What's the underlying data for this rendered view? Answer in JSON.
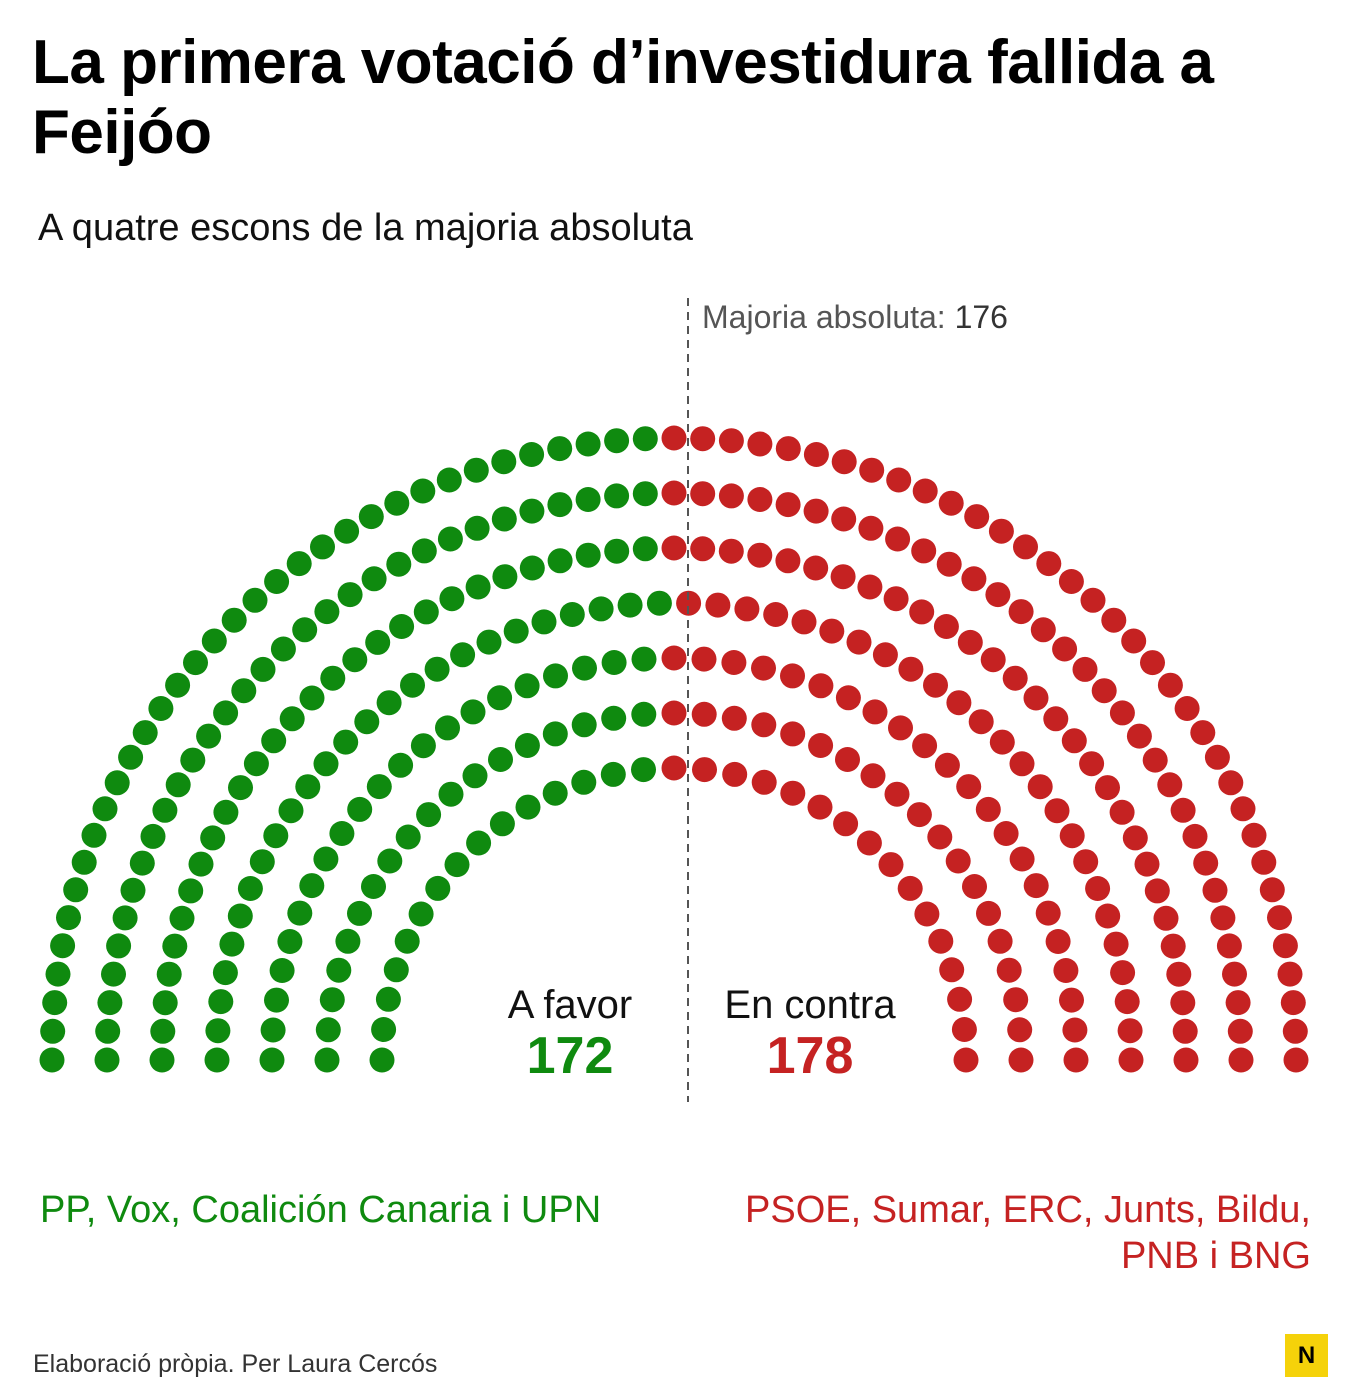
{
  "title": "La primera votació d’investidura fallida a Feijóo",
  "subtitle": "A quatre escons de la majoria absoluta",
  "majority": {
    "label": "Majoria absoluta:",
    "value": "176"
  },
  "favor": {
    "label": "A favor",
    "value": "172",
    "parties": "PP, Vox, Coalición Canaria i UPN"
  },
  "contra": {
    "label": "En contra",
    "value": "178",
    "parties_line1": "PSOE, Sumar, ERC, Junts, Bildu,",
    "parties_line2": "PNB i BNG"
  },
  "source": "Elaboració pròpia. Per Laura Cercós",
  "logo": "N",
  "colors": {
    "favor": "#0f8a0f",
    "contra": "#c52222",
    "majority_line": "#555555"
  },
  "chart_data": {
    "type": "parliament",
    "total_seats": 350,
    "majority_threshold": 176,
    "series": [
      {
        "name": "A favor",
        "values": [
          172
        ],
        "color": "#0f8a0f"
      },
      {
        "name": "En contra",
        "values": [
          178
        ],
        "color": "#c52222"
      }
    ],
    "rows": 7,
    "annotations": [
      "Majoria absoluta: 176"
    ]
  }
}
